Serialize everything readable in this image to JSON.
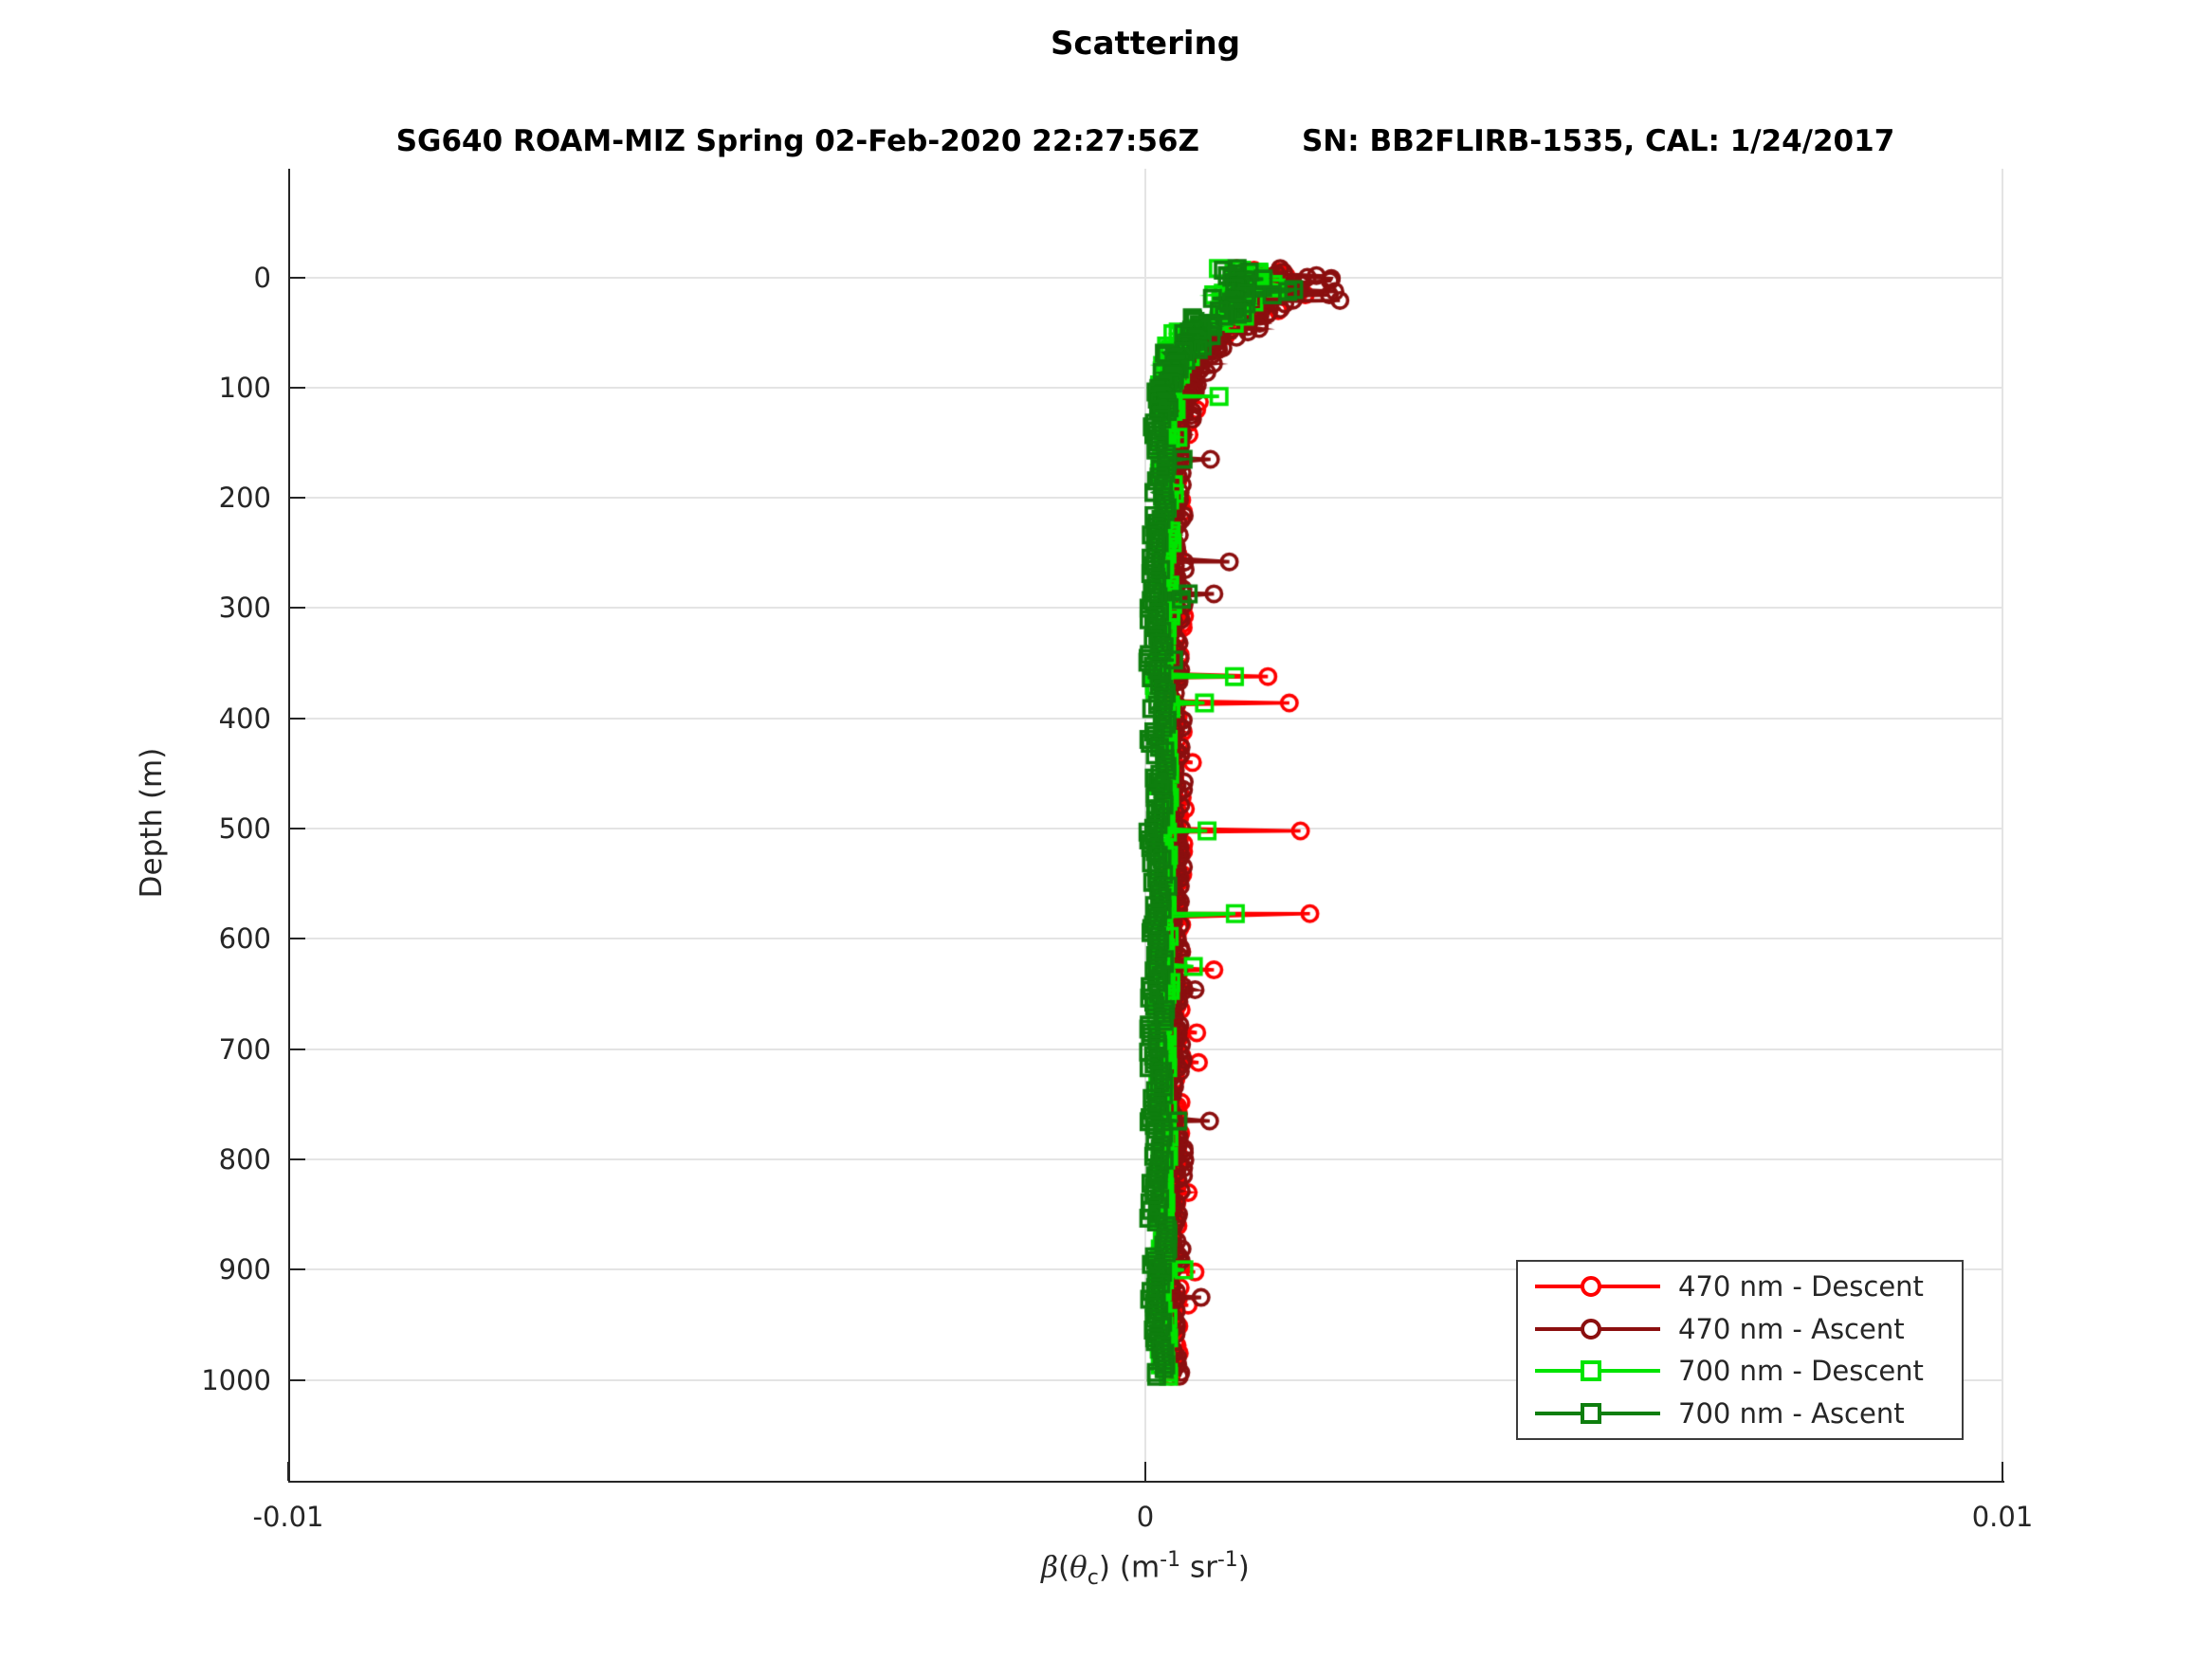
{
  "title": "Scattering",
  "subtitle": {
    "left": "SG640 ROAM-MIZ Spring 02-Feb-2020 22:27:56Z",
    "right": "SN: BB2FLIRB-1535, CAL: 1/24/2017"
  },
  "axes": {
    "ylabel": "Depth (m)",
    "xlabel_parts": {
      "beta": "β",
      "open": "(",
      "theta": "θ",
      "sub_c": "c",
      "mid": ") (m",
      "sup1": "-1",
      "sr": " sr",
      "sup2": "-1",
      "close": ")"
    },
    "xlabel_plain": "β(θc) (m-1 sr-1)",
    "x_tick_labels": [
      "-0.01",
      "0",
      "0.01"
    ],
    "x_tick_values": [
      -0.01,
      0,
      0.01
    ],
    "y_tick_labels": [
      "0",
      "100",
      "200",
      "300",
      "400",
      "500",
      "600",
      "700",
      "800",
      "900",
      "1000"
    ],
    "y_tick_values": [
      0,
      100,
      200,
      300,
      400,
      500,
      600,
      700,
      800,
      900,
      1000
    ]
  },
  "legend": {
    "items": [
      {
        "label": "470 nm - Descent",
        "color": "#fe0000",
        "marker": "circle"
      },
      {
        "label": "470 nm - Ascent",
        "color": "#8b0f0f",
        "marker": "circle"
      },
      {
        "label": "700 nm - Descent",
        "color": "#00e400",
        "marker": "square"
      },
      {
        "label": "700 nm - Ascent",
        "color": "#0e7e0e",
        "marker": "square"
      }
    ]
  },
  "chart_data": {
    "type": "scatter",
    "description": "Depth profiles of optical volume scattering beta(theta_c); four series, beta on x vs depth on y (depth increases downward). Band of points near beta=0.0002-0.0004 from surface to 1000 m, strong enhancement in upper 100 m, sporadic horizontal spike outliers at depth.",
    "xlabel": "beta(theta_c) (m^-1 sr^-1)",
    "ylabel": "Depth (m)",
    "xlim": [
      -0.01,
      0.01
    ],
    "depth_lim": [
      -98,
      1091
    ],
    "grid": true,
    "legend_position": "lower right inside axes",
    "envelope_note": "keypoints are [depth_m, beta_center, beta_half_spread]; points scatter uniformly within center±spread; spikes are [depth_m, beta] outliers connected to the profile by a horizontal segment",
    "series": [
      {
        "name": "470 nm - Descent",
        "color": "#fe0000",
        "marker": "circle",
        "keypoints": [
          [
            -8,
            0.0013,
            0.0005
          ],
          [
            5,
            0.0015,
            0.0005
          ],
          [
            15,
            0.00155,
            0.00045
          ],
          [
            25,
            0.00135,
            0.00045
          ],
          [
            35,
            0.0011,
            0.0004
          ],
          [
            45,
            0.0009,
            0.00035
          ],
          [
            55,
            0.00075,
            0.0003
          ],
          [
            70,
            0.00055,
            0.00025
          ],
          [
            85,
            0.00045,
            0.0002
          ],
          [
            100,
            0.00042,
            0.00018
          ],
          [
            120,
            0.00038,
            0.00016
          ],
          [
            200,
            0.00033,
            0.00015
          ],
          [
            400,
            0.00032,
            0.00015
          ],
          [
            600,
            0.00033,
            0.00015
          ],
          [
            800,
            0.00031,
            0.00014
          ],
          [
            1000,
            0.0003,
            0.00013
          ]
        ],
        "spikes": [
          [
            113,
            0.00063
          ],
          [
            120,
            0.0006
          ],
          [
            362,
            0.00143
          ],
          [
            386,
            0.00168
          ],
          [
            440,
            0.00055
          ],
          [
            502,
            0.00181
          ],
          [
            577,
            0.00192
          ],
          [
            628,
            0.0008
          ],
          [
            685,
            0.0006
          ],
          [
            712,
            0.00062
          ],
          [
            830,
            0.0005
          ],
          [
            902,
            0.00058
          ],
          [
            932,
            0.0005
          ]
        ]
      },
      {
        "name": "470 nm - Ascent",
        "color": "#8b0f0f",
        "marker": "circle",
        "keypoints": [
          [
            -8,
            0.0015,
            0.00055
          ],
          [
            5,
            0.0017,
            0.00055
          ],
          [
            15,
            0.0018,
            0.0005
          ],
          [
            25,
            0.0016,
            0.0005
          ],
          [
            35,
            0.00135,
            0.00045
          ],
          [
            45,
            0.0011,
            0.0004
          ],
          [
            60,
            0.00085,
            0.0003
          ],
          [
            75,
            0.00065,
            0.00025
          ],
          [
            90,
            0.00052,
            0.0002
          ],
          [
            110,
            0.00045,
            0.00015
          ],
          [
            150,
            0.0004,
            0.00013
          ],
          [
            300,
            0.00037,
            0.00013
          ],
          [
            500,
            0.00036,
            0.00013
          ],
          [
            700,
            0.00036,
            0.00012
          ],
          [
            1000,
            0.00034,
            0.00012
          ]
        ],
        "spikes": [
          [
            1,
            0.00217
          ],
          [
            21,
            0.00227
          ],
          [
            165,
            0.00076
          ],
          [
            258,
            0.00098
          ],
          [
            287,
            0.0008
          ],
          [
            646,
            0.00058
          ],
          [
            765,
            0.00075
          ],
          [
            925,
            0.00065
          ]
        ]
      },
      {
        "name": "700 nm - Descent",
        "color": "#00e400",
        "marker": "square",
        "keypoints": [
          [
            -8,
            0.0009,
            0.00055
          ],
          [
            5,
            0.00115,
            0.0005
          ],
          [
            15,
            0.0012,
            0.00045
          ],
          [
            25,
            0.001,
            0.00045
          ],
          [
            35,
            0.00085,
            0.0004
          ],
          [
            50,
            0.0006,
            0.0003
          ],
          [
            65,
            0.00045,
            0.00025
          ],
          [
            80,
            0.00033,
            0.0002
          ],
          [
            100,
            0.00027,
            0.00015
          ],
          [
            150,
            0.00023,
            0.00012
          ],
          [
            300,
            0.00021,
            0.00011
          ],
          [
            600,
            0.00021,
            0.00011
          ],
          [
            1000,
            0.0002,
            0.0001
          ]
        ],
        "spikes": [
          [
            108,
            0.00086
          ],
          [
            145,
            0.00038
          ],
          [
            196,
            0.00034
          ],
          [
            362,
            0.00104
          ],
          [
            386,
            0.00069
          ],
          [
            502,
            0.00072
          ],
          [
            577,
            0.00105
          ],
          [
            625,
            0.00056
          ],
          [
            900,
            0.00045
          ]
        ]
      },
      {
        "name": "700 nm - Ascent",
        "color": "#0e7e0e",
        "marker": "square",
        "keypoints": [
          [
            -8,
            0.0011,
            0.0006
          ],
          [
            5,
            0.00125,
            0.00055
          ],
          [
            15,
            0.0013,
            0.0005
          ],
          [
            25,
            0.00105,
            0.0005
          ],
          [
            35,
            0.00085,
            0.00045
          ],
          [
            50,
            0.0006,
            0.00035
          ],
          [
            65,
            0.0004,
            0.00028
          ],
          [
            80,
            0.00028,
            0.0002
          ],
          [
            100,
            0.0002,
            0.00016
          ],
          [
            150,
            0.00016,
            0.00013
          ],
          [
            300,
            0.00015,
            0.00013
          ],
          [
            600,
            0.00015,
            0.00013
          ],
          [
            1000,
            0.00014,
            0.00012
          ]
        ],
        "spikes": [
          [
            165,
            0.00044
          ],
          [
            287,
            0.0005
          ],
          [
            292,
            0.00042
          ],
          [
            347,
            0.00033
          ],
          [
            765,
            0.00038
          ]
        ]
      }
    ]
  }
}
